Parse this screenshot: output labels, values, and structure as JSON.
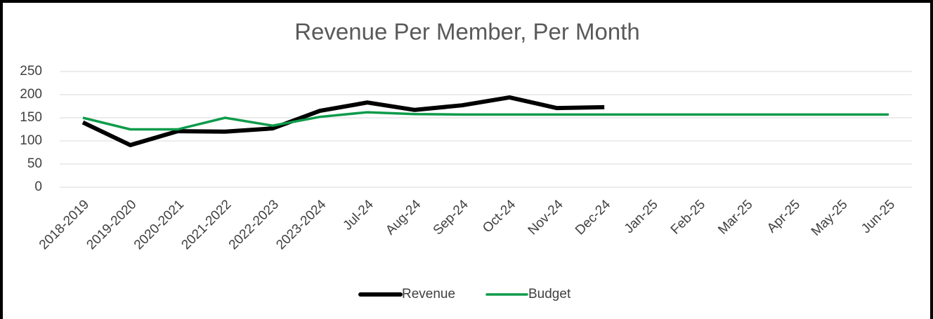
{
  "chart_data": {
    "type": "line",
    "title": "Revenue Per Member, Per Month",
    "categories": [
      "2018-2019",
      "2019-2020",
      "2020-2021",
      "2021-2022",
      "2022-2023",
      "2023-2024",
      "Jul-24",
      "Aug-24",
      "Sep-24",
      "Oct-24",
      "Nov-24",
      "Dec-24",
      "Jan-25",
      "Feb-25",
      "Mar-25",
      "Apr-25",
      "May-25",
      "Jun-25"
    ],
    "series": [
      {
        "name": "Revenue",
        "color": "#000000",
        "values": [
          140,
          91,
          121,
          120,
          127,
          165,
          183,
          167,
          177,
          194,
          171,
          173,
          null,
          null,
          null,
          null,
          null,
          null
        ]
      },
      {
        "name": "Budget",
        "color": "#0e9b4b",
        "values": [
          150,
          125,
          125,
          150,
          133,
          152,
          162,
          158,
          157,
          157,
          157,
          157,
          157,
          157,
          157,
          157,
          157,
          157
        ]
      }
    ],
    "ylim": [
      0,
      250
    ],
    "yticks": [
      0,
      50,
      100,
      150,
      200,
      250
    ],
    "grid": true,
    "legend": "bottom"
  }
}
